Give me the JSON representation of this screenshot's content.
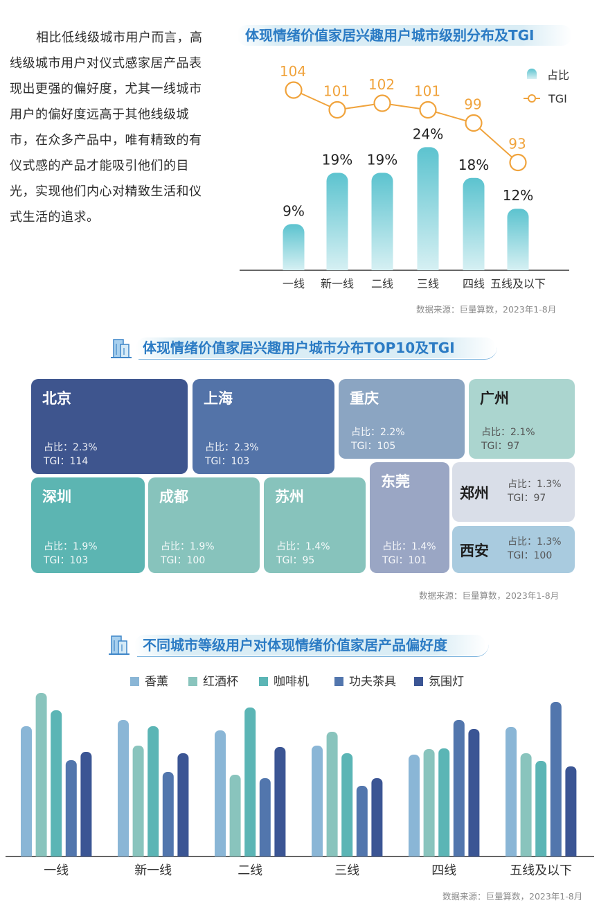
{
  "intro_text": "相比低线级城市用户而言，高线级城市用户对仪式感家居产品表现出更强的偏好度，尤其一线城市用户的偏好度远高于其他线级城市，在众多产品中，唯有精致的有仪式感的产品才能吸引他们的目光，实现他们内心对精致生活和仪式生活的追求。",
  "colors": {
    "title": "#2b7bc4",
    "tgi_line": "#f0a33c",
    "bar_top": "#5cc3cf",
    "bar_bottom": "#d6f0f3",
    "series": [
      "#8ab6d6",
      "#89c4bd",
      "#5bb5b5",
      "#5276ad",
      "#3b5594"
    ]
  },
  "chart_data": [
    {
      "type": "bar",
      "title": "体现情绪价值家居兴趣用户城市级别分布及TGI",
      "categories": [
        "一线",
        "新一线",
        "二线",
        "三线",
        "四线",
        "五线及以下"
      ],
      "series": [
        {
          "name": "占比",
          "values": [
            9,
            19,
            19,
            24,
            18,
            12
          ],
          "labels": [
            "9%",
            "19%",
            "19%",
            "24%",
            "18%",
            "12%"
          ]
        },
        {
          "name": "TGI",
          "type": "line",
          "values": [
            104,
            101,
            102,
            101,
            99,
            93
          ],
          "labels": [
            "104",
            "101",
            "102",
            "101",
            "99",
            "93"
          ]
        }
      ],
      "legend": [
        "占比",
        "TGI"
      ],
      "legend_position": "top-right",
      "source": "数据来源：巨量算数，2023年1-8月"
    },
    {
      "type": "table",
      "title": "体现情绪价值家居兴趣用户城市分布TOP10及TGI",
      "share_label": "占比：",
      "tgi_label": "TGI：",
      "items": [
        {
          "city": "北京",
          "share": "2.3%",
          "tgi": "114"
        },
        {
          "city": "上海",
          "share": "2.3%",
          "tgi": "103"
        },
        {
          "city": "重庆",
          "share": "2.2%",
          "tgi": "105"
        },
        {
          "city": "广州",
          "share": "2.1%",
          "tgi": "97"
        },
        {
          "city": "深圳",
          "share": "1.9%",
          "tgi": "103"
        },
        {
          "city": "成都",
          "share": "1.9%",
          "tgi": "100"
        },
        {
          "city": "苏州",
          "share": "1.4%",
          "tgi": "95"
        },
        {
          "city": "东莞",
          "share": "1.4%",
          "tgi": "101"
        },
        {
          "city": "郑州",
          "share": "1.3%",
          "tgi": "97"
        },
        {
          "city": "西安",
          "share": "1.3%",
          "tgi": "100"
        }
      ],
      "source": "数据来源：巨量算数，2023年1-8月"
    },
    {
      "type": "bar",
      "title": "不同城市等级用户对体现情绪价值家居产品偏好度",
      "categories": [
        "一线",
        "新一线",
        "二线",
        "三线",
        "四线",
        "五线及以下"
      ],
      "series": [
        {
          "name": "香薰",
          "values": [
            188,
            197,
            182,
            160,
            147,
            187
          ]
        },
        {
          "name": "红酒杯",
          "values": [
            236,
            160,
            118,
            180,
            155,
            149
          ]
        },
        {
          "name": "咖啡机",
          "values": [
            211,
            188,
            215,
            149,
            156,
            138
          ]
        },
        {
          "name": "功夫茶具",
          "values": [
            139,
            122,
            113,
            102,
            197,
            223
          ]
        },
        {
          "name": "氛围灯",
          "values": [
            151,
            149,
            158,
            113,
            184,
            130
          ]
        }
      ],
      "ylim": [
        0,
        250
      ],
      "legend_position": "top",
      "source": "数据来源：巨量算数，2023年1-8月"
    }
  ]
}
